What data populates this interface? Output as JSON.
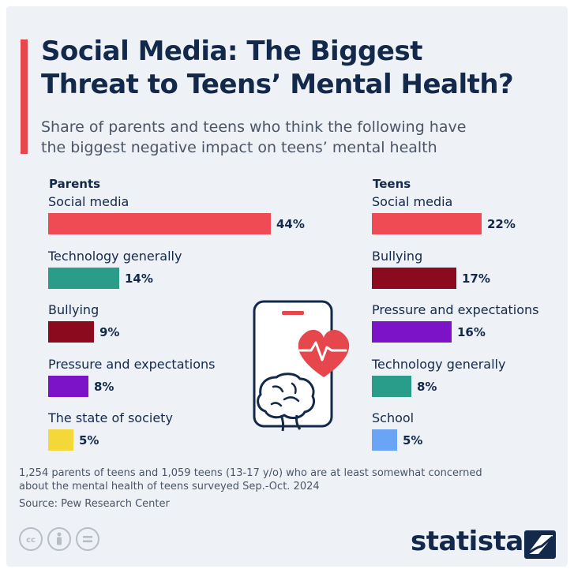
{
  "title": "Social Media: The Biggest Threat to Teens’ Mental Health?",
  "title_lines": [
    "Social Media: The Biggest",
    "Threat to Teens’ Mental Health?"
  ],
  "subtitle_lines": [
    "Share of parents and teens who think the following have",
    "the biggest negative impact on teens’ mental health"
  ],
  "footnote_lines": [
    "1,254 parents of teens and 1,059 teens (13-17 y/o) who are at least somewhat concerned",
    "about the mental health of teens surveyed Sep.-Oct. 2024"
  ],
  "source": "Source: Pew Research Center",
  "brand": "statista",
  "icons": [
    "cc-license-icon",
    "attribution-icon",
    "no-derivatives-icon",
    "statista-logo-icon",
    "phone-icon",
    "brain-icon",
    "heart-icon"
  ],
  "colors": {
    "accent": "#e5474d",
    "social_media": "#ef4b55",
    "technology_generally": "#2a9d8a",
    "bullying": "#8b0a1e",
    "pressure_and_expectations": "#7d13c9",
    "state_of_society": "#f4d83a",
    "school": "#6aa5f5",
    "text_dark": "#13294b"
  },
  "chart_data": [
    {
      "type": "bar",
      "orientation": "horizontal",
      "panel": "Parents",
      "categories": [
        "Social media",
        "Technology generally",
        "Bullying",
        "Pressure and expectations",
        "The state of society"
      ],
      "values": [
        44,
        14,
        9,
        8,
        5
      ],
      "value_labels": [
        "44%",
        "14%",
        "9%",
        "8%",
        "5%"
      ],
      "bar_colors": [
        "#ef4b55",
        "#2a9d8a",
        "#8b0a1e",
        "#7d13c9",
        "#f4d83a"
      ],
      "unit": "%"
    },
    {
      "type": "bar",
      "orientation": "horizontal",
      "panel": "Teens",
      "categories": [
        "Social media",
        "Bullying",
        "Pressure and expectations",
        "Technology generally",
        "School"
      ],
      "values": [
        22,
        17,
        16,
        8,
        5
      ],
      "value_labels": [
        "22%",
        "17%",
        "16%",
        "8%",
        "5%"
      ],
      "bar_colors": [
        "#ef4b55",
        "#8b0a1e",
        "#7d13c9",
        "#2a9d8a",
        "#6aa5f5"
      ],
      "unit": "%"
    }
  ]
}
